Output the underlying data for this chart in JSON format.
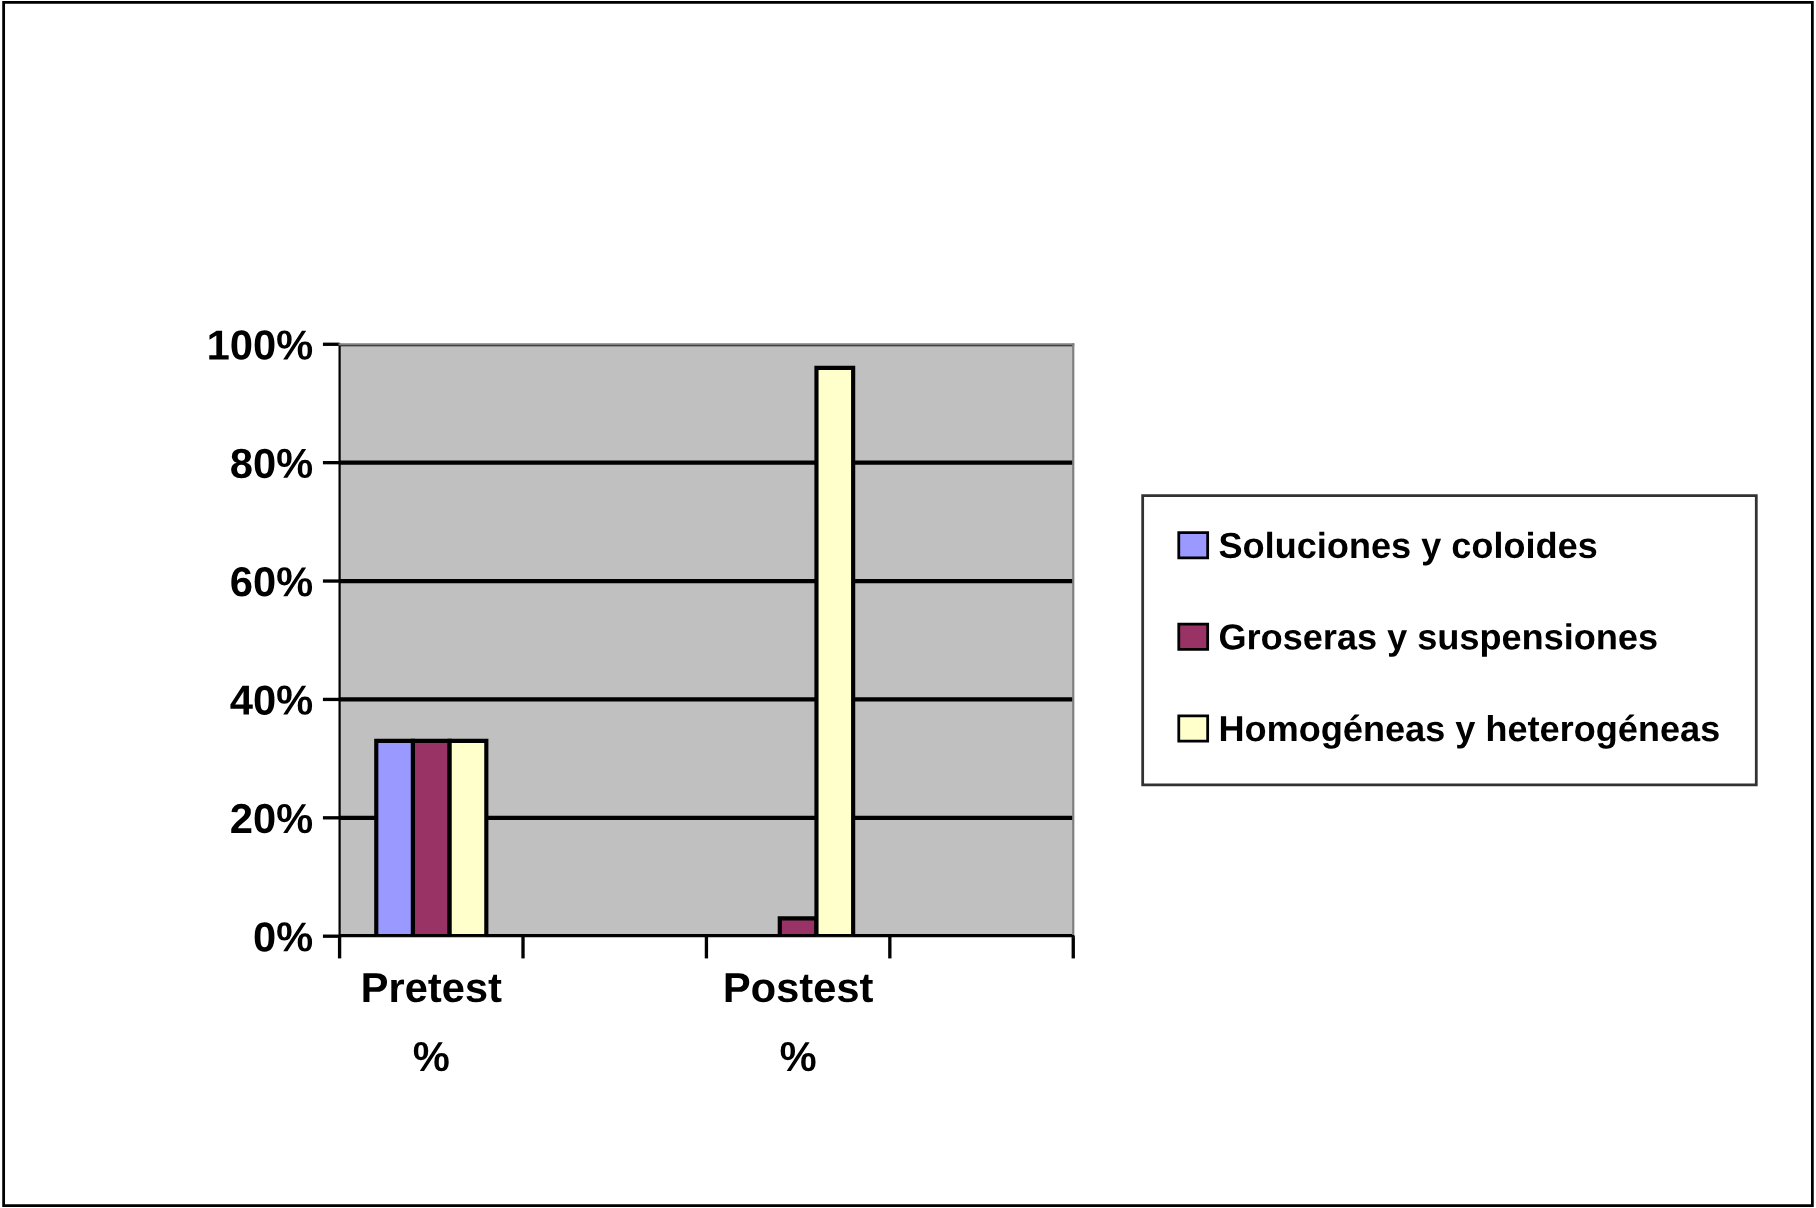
{
  "chart_data": {
    "type": "bar",
    "categories": [
      "Pretest %",
      null,
      "Postest %",
      null
    ],
    "series": [
      {
        "name": "Soluciones y coloides",
        "color": "#9999ff",
        "values": [
          33,
          null,
          null,
          null
        ]
      },
      {
        "name": "Groseras y suspensiones",
        "color": "#993366",
        "values": [
          33,
          null,
          3,
          null
        ]
      },
      {
        "name": "Homogéneas y heterogéneas",
        "color": "#ffffcc",
        "values": [
          33,
          null,
          96,
          null
        ]
      }
    ],
    "ylim": [
      0,
      100
    ],
    "yticks": [
      {
        "value": 0,
        "label": "0%"
      },
      {
        "value": 20,
        "label": "20%"
      },
      {
        "value": 40,
        "label": "40%"
      },
      {
        "value": 60,
        "label": "60%"
      },
      {
        "value": 80,
        "label": "80%"
      },
      {
        "value": 100,
        "label": "100%"
      }
    ],
    "grid": "y",
    "legend": "right"
  }
}
